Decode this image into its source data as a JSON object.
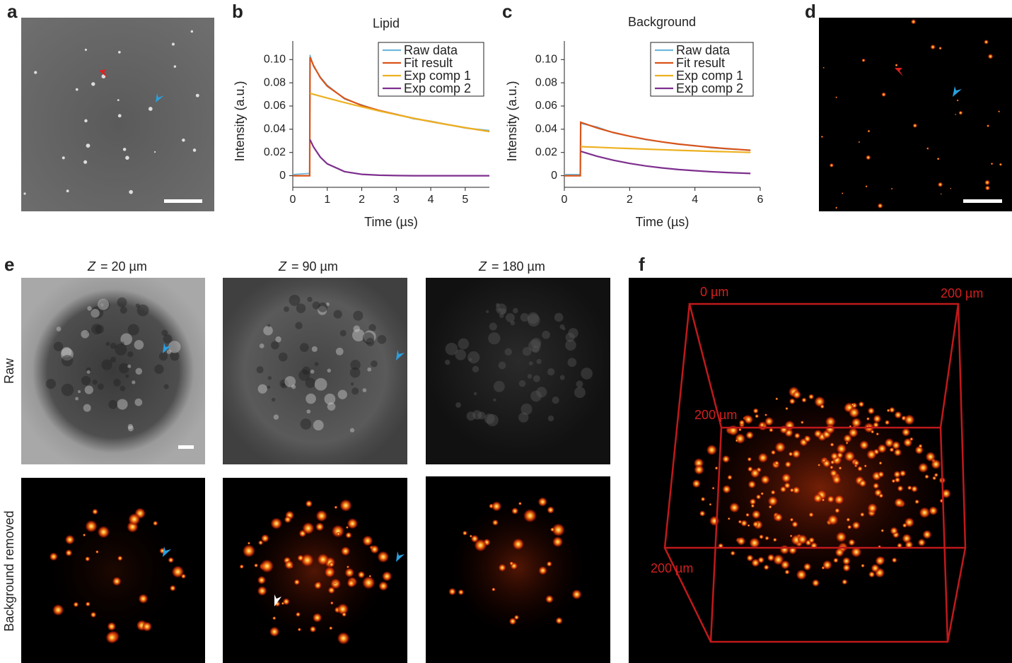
{
  "panel_labels": [
    "a",
    "b",
    "c",
    "d",
    "e",
    "f"
  ],
  "chart_data": [
    {
      "type": "line",
      "title": "Lipid",
      "xlabel": "Time (µs)",
      "ylabel": "Intensity (a.u.)",
      "x": [
        0,
        0.49,
        0.5,
        0.6,
        0.8,
        1,
        1.5,
        2,
        2.5,
        3,
        3.5,
        4,
        4.5,
        5,
        5.7
      ],
      "series": [
        {
          "name": "Raw data",
          "color": "#6fb8dc",
          "values": [
            0.001,
            0.002,
            0.104,
            0.094,
            0.085,
            0.078,
            0.066,
            0.061,
            0.056,
            0.053,
            0.049,
            0.047,
            0.044,
            0.041,
            0.039
          ]
        },
        {
          "name": "Fit result",
          "color": "#d9541a",
          "values": [
            0,
            0,
            0.102,
            0.0949,
            0.0844,
            0.0771,
            0.0665,
            0.0605,
            0.0562,
            0.0527,
            0.0495,
            0.0466,
            0.0439,
            0.0413,
            0.038
          ]
        },
        {
          "name": "Exp comp 1",
          "color": "#edb120",
          "values": [
            null,
            null,
            0.071,
            0.0701,
            0.0685,
            0.0669,
            0.063,
            0.0593,
            0.0558,
            0.0526,
            0.0495,
            0.0466,
            0.0439,
            0.0413,
            0.038
          ]
        },
        {
          "name": "Exp comp 2",
          "color": "#7e2f8e",
          "values": [
            null,
            null,
            0.031,
            0.0248,
            0.0159,
            0.0102,
            0.0035,
            0.0012,
            0.0004,
            0.0001,
            0,
            0,
            0,
            0,
            0
          ]
        }
      ],
      "xlim": [
        0,
        5.7
      ],
      "xticks": [
        0,
        1,
        2,
        3,
        4,
        5
      ],
      "ylim": [
        -0.01,
        0.116
      ],
      "yticks": [
        0,
        {
          "value": 0.02,
          "label": "0.02"
        },
        {
          "value": 0.04,
          "label": "0.04"
        },
        {
          "value": 0.06,
          "label": "0.06"
        },
        {
          "value": 0.08,
          "label": "0.08"
        },
        {
          "value": 0.1,
          "label": "0.10"
        }
      ],
      "legend": "upper right"
    },
    {
      "type": "line",
      "title": "Background",
      "xlabel": "Time (µs)",
      "ylabel": "Intensity (a.u.)",
      "x": [
        0,
        0.49,
        0.5,
        1,
        1.5,
        2,
        2.5,
        3,
        3.5,
        4,
        4.5,
        5,
        5.7
      ],
      "series": [
        {
          "name": "Raw data",
          "color": "#6fb8dc",
          "values": [
            0.001,
            0.001,
            0.045,
            0.042,
            0.037,
            0.034,
            0.031,
            0.029,
            0.027,
            0.026,
            0.024,
            0.023,
            0.022
          ]
        },
        {
          "name": "Fit result",
          "color": "#d9541a",
          "values": [
            0,
            0,
            0.046,
            0.0412,
            0.0372,
            0.034,
            0.0313,
            0.0291,
            0.0272,
            0.0257,
            0.0244,
            0.0233,
            0.0219
          ]
        },
        {
          "name": "Exp comp 1",
          "color": "#edb120",
          "values": [
            null,
            null,
            0.025,
            0.0245,
            0.0239,
            0.0234,
            0.0229,
            0.0224,
            0.0219,
            0.0214,
            0.021,
            0.0206,
            0.02
          ]
        },
        {
          "name": "Exp comp 2",
          "color": "#7e2f8e",
          "values": [
            null,
            null,
            0.021,
            0.0167,
            0.0133,
            0.0106,
            0.0084,
            0.0067,
            0.0053,
            0.0043,
            0.0034,
            0.0027,
            0.0019
          ]
        }
      ],
      "xlim": [
        0,
        6
      ],
      "xticks": [
        0,
        2,
        4,
        6
      ],
      "ylim": [
        -0.01,
        0.116
      ],
      "yticks": [
        0,
        {
          "value": 0.02,
          "label": "0.02"
        },
        {
          "value": 0.04,
          "label": "0.04"
        },
        {
          "value": 0.06,
          "label": "0.06"
        },
        {
          "value": 0.08,
          "label": "0.08"
        },
        {
          "value": 0.1,
          "label": "0.10"
        }
      ],
      "legend": "upper right"
    }
  ],
  "panel_e": {
    "columns": [
      {
        "var": "Z",
        "rest": "= 20 µm"
      },
      {
        "var": "Z",
        "rest": "= 90 µm"
      },
      {
        "var": "Z",
        "rest": "= 180 µm"
      }
    ],
    "rows": [
      "Raw",
      "Background removed"
    ]
  },
  "panel_f": {
    "labels": [
      "0 µm",
      "200 µm",
      "200 µm",
      "200 µm"
    ]
  }
}
